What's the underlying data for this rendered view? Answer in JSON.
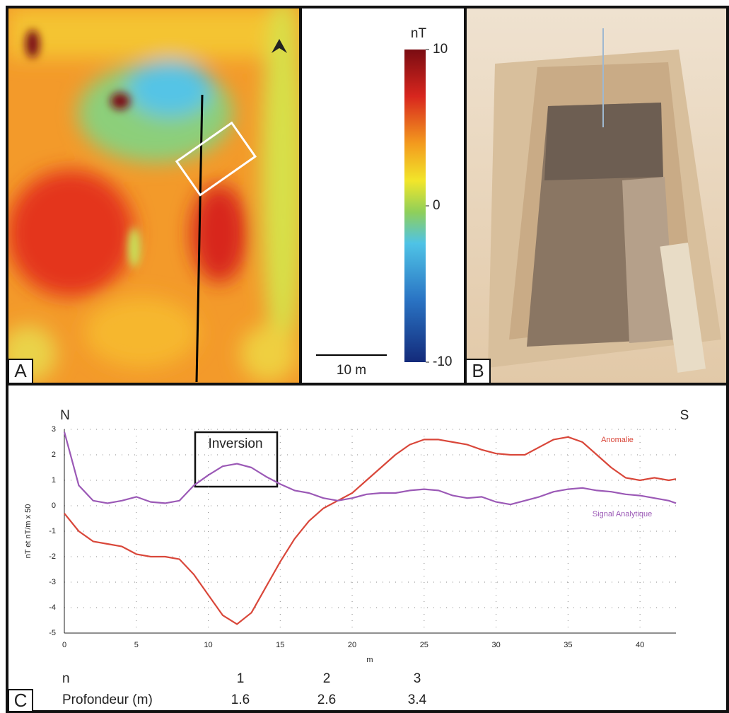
{
  "panel_labels": [
    "A",
    "B",
    "C"
  ],
  "map": {
    "colorbar": {
      "label": "nT",
      "lim": [
        -10,
        10
      ],
      "ticks": [
        -10,
        0,
        10
      ]
    },
    "scale_bar": "10 m"
  },
  "chart_data": {
    "type": "line",
    "annotations": {
      "north": "N",
      "south": "S",
      "box": "Inversion"
    },
    "y_label": "nT et nT/m x 50",
    "x_label": "m",
    "x": [
      0,
      1,
      2,
      3,
      4,
      5,
      6,
      7,
      8,
      9,
      10,
      11,
      12,
      13,
      14,
      15,
      16,
      17,
      18,
      19,
      20,
      21,
      22,
      23,
      24,
      25,
      26,
      27,
      28,
      29,
      30,
      31,
      32,
      33,
      34,
      35,
      36,
      37,
      38,
      39,
      40,
      41,
      42,
      42.5
    ],
    "series": [
      {
        "name": "Anomalie",
        "color": "#d9473a",
        "values": [
          -0.3,
          -1.0,
          -1.4,
          -1.5,
          -1.6,
          -1.9,
          -2.0,
          -2.0,
          -2.1,
          -2.7,
          -3.5,
          -4.3,
          -4.65,
          -4.2,
          -3.2,
          -2.2,
          -1.3,
          -0.6,
          -0.1,
          0.2,
          0.5,
          1.0,
          1.5,
          2.0,
          2.4,
          2.6,
          2.6,
          2.5,
          2.4,
          2.2,
          2.05,
          2.0,
          2.0,
          2.3,
          2.6,
          2.7,
          2.5,
          2.0,
          1.5,
          1.1,
          1.0,
          1.1,
          1.0,
          1.05
        ]
      },
      {
        "name": "Signal Analytique",
        "color": "#9b59b6",
        "values": [
          2.9,
          0.8,
          0.2,
          0.1,
          0.2,
          0.35,
          0.15,
          0.1,
          0.2,
          0.8,
          1.2,
          1.55,
          1.65,
          1.5,
          1.15,
          0.85,
          0.6,
          0.5,
          0.3,
          0.2,
          0.3,
          0.45,
          0.5,
          0.5,
          0.6,
          0.65,
          0.6,
          0.4,
          0.3,
          0.35,
          0.15,
          0.05,
          0.2,
          0.35,
          0.55,
          0.65,
          0.7,
          0.6,
          0.55,
          0.45,
          0.4,
          0.3,
          0.2,
          0.1
        ]
      }
    ],
    "xlim": [
      0,
      42.5
    ],
    "xticks": [
      0,
      5,
      10,
      15,
      20,
      25,
      30,
      35,
      40
    ],
    "ylim": [
      -5,
      3
    ],
    "yticks": [
      -5,
      -4,
      -3,
      -2,
      -1,
      0,
      1,
      2,
      3
    ],
    "grid": true
  },
  "depth_table": {
    "rows": [
      [
        "n",
        1,
        2,
        3
      ],
      [
        "Profondeur (m)",
        1.6,
        2.6,
        3.4
      ]
    ]
  }
}
